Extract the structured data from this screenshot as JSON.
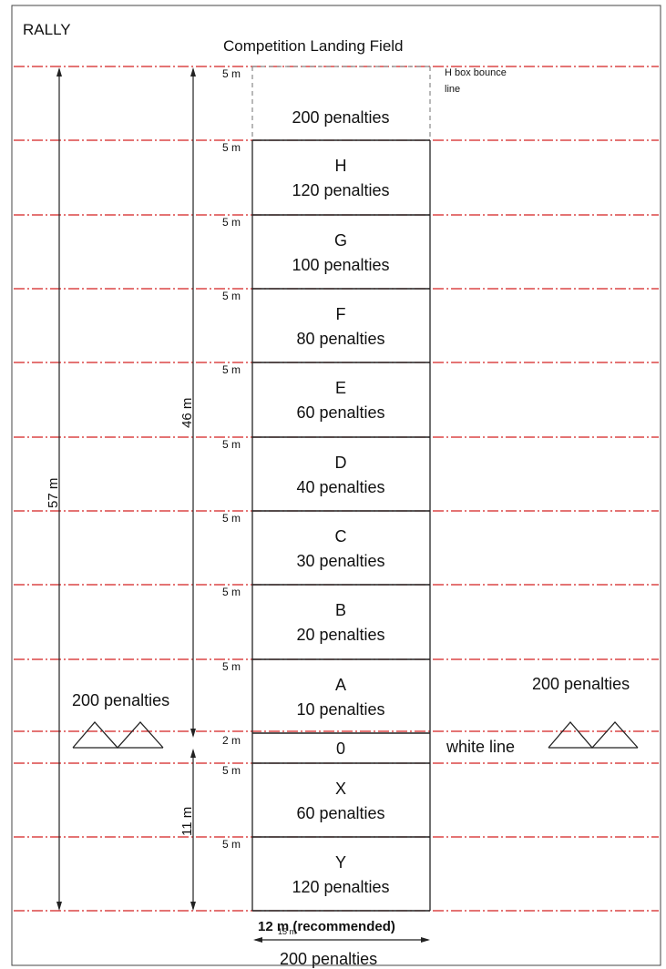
{
  "header": {
    "left_title": "RALLY",
    "title": "Competition Landing Field"
  },
  "dimensions": {
    "total_length": "57 m",
    "field_length": "46 m",
    "rear_length": "11 m",
    "width": "12 m (recommended)",
    "width_underlay": "15 m"
  },
  "bounce_note": {
    "line1": "H box bounce",
    "line2": "line"
  },
  "boxes": [
    {
      "letter": "",
      "penalty": "200 penalties",
      "height_label": "5 m"
    },
    {
      "letter": "H",
      "penalty": "120 penalties",
      "height_label": "5 m"
    },
    {
      "letter": "G",
      "penalty": "100 penalties",
      "height_label": "5 m"
    },
    {
      "letter": "F",
      "penalty": "80 penalties",
      "height_label": "5 m"
    },
    {
      "letter": "E",
      "penalty": "60 penalties",
      "height_label": "5 m"
    },
    {
      "letter": "D",
      "penalty": "40 penalties",
      "height_label": "5 m"
    },
    {
      "letter": "C",
      "penalty": "30 penalties",
      "height_label": "5 m"
    },
    {
      "letter": "B",
      "penalty": "20 penalties",
      "height_label": "5 m"
    },
    {
      "letter": "A",
      "penalty": "10 penalties",
      "height_label": "5 m"
    },
    {
      "letter": "0",
      "penalty": "",
      "height_label": "2 m"
    },
    {
      "letter": "X",
      "penalty": "60 penalties",
      "height_label": "5 m"
    },
    {
      "letter": "Y",
      "penalty": "120 penalties",
      "height_label": "5 m"
    }
  ],
  "side_left": {
    "penalty": "200 penalties"
  },
  "side_right": {
    "penalty": "200 penalties"
  },
  "white_line_label": "white line",
  "bottom_penalty": "200 penalties",
  "colors": {
    "red_line": "#d42020",
    "line": "#222222",
    "dashed_box": "#888888"
  }
}
